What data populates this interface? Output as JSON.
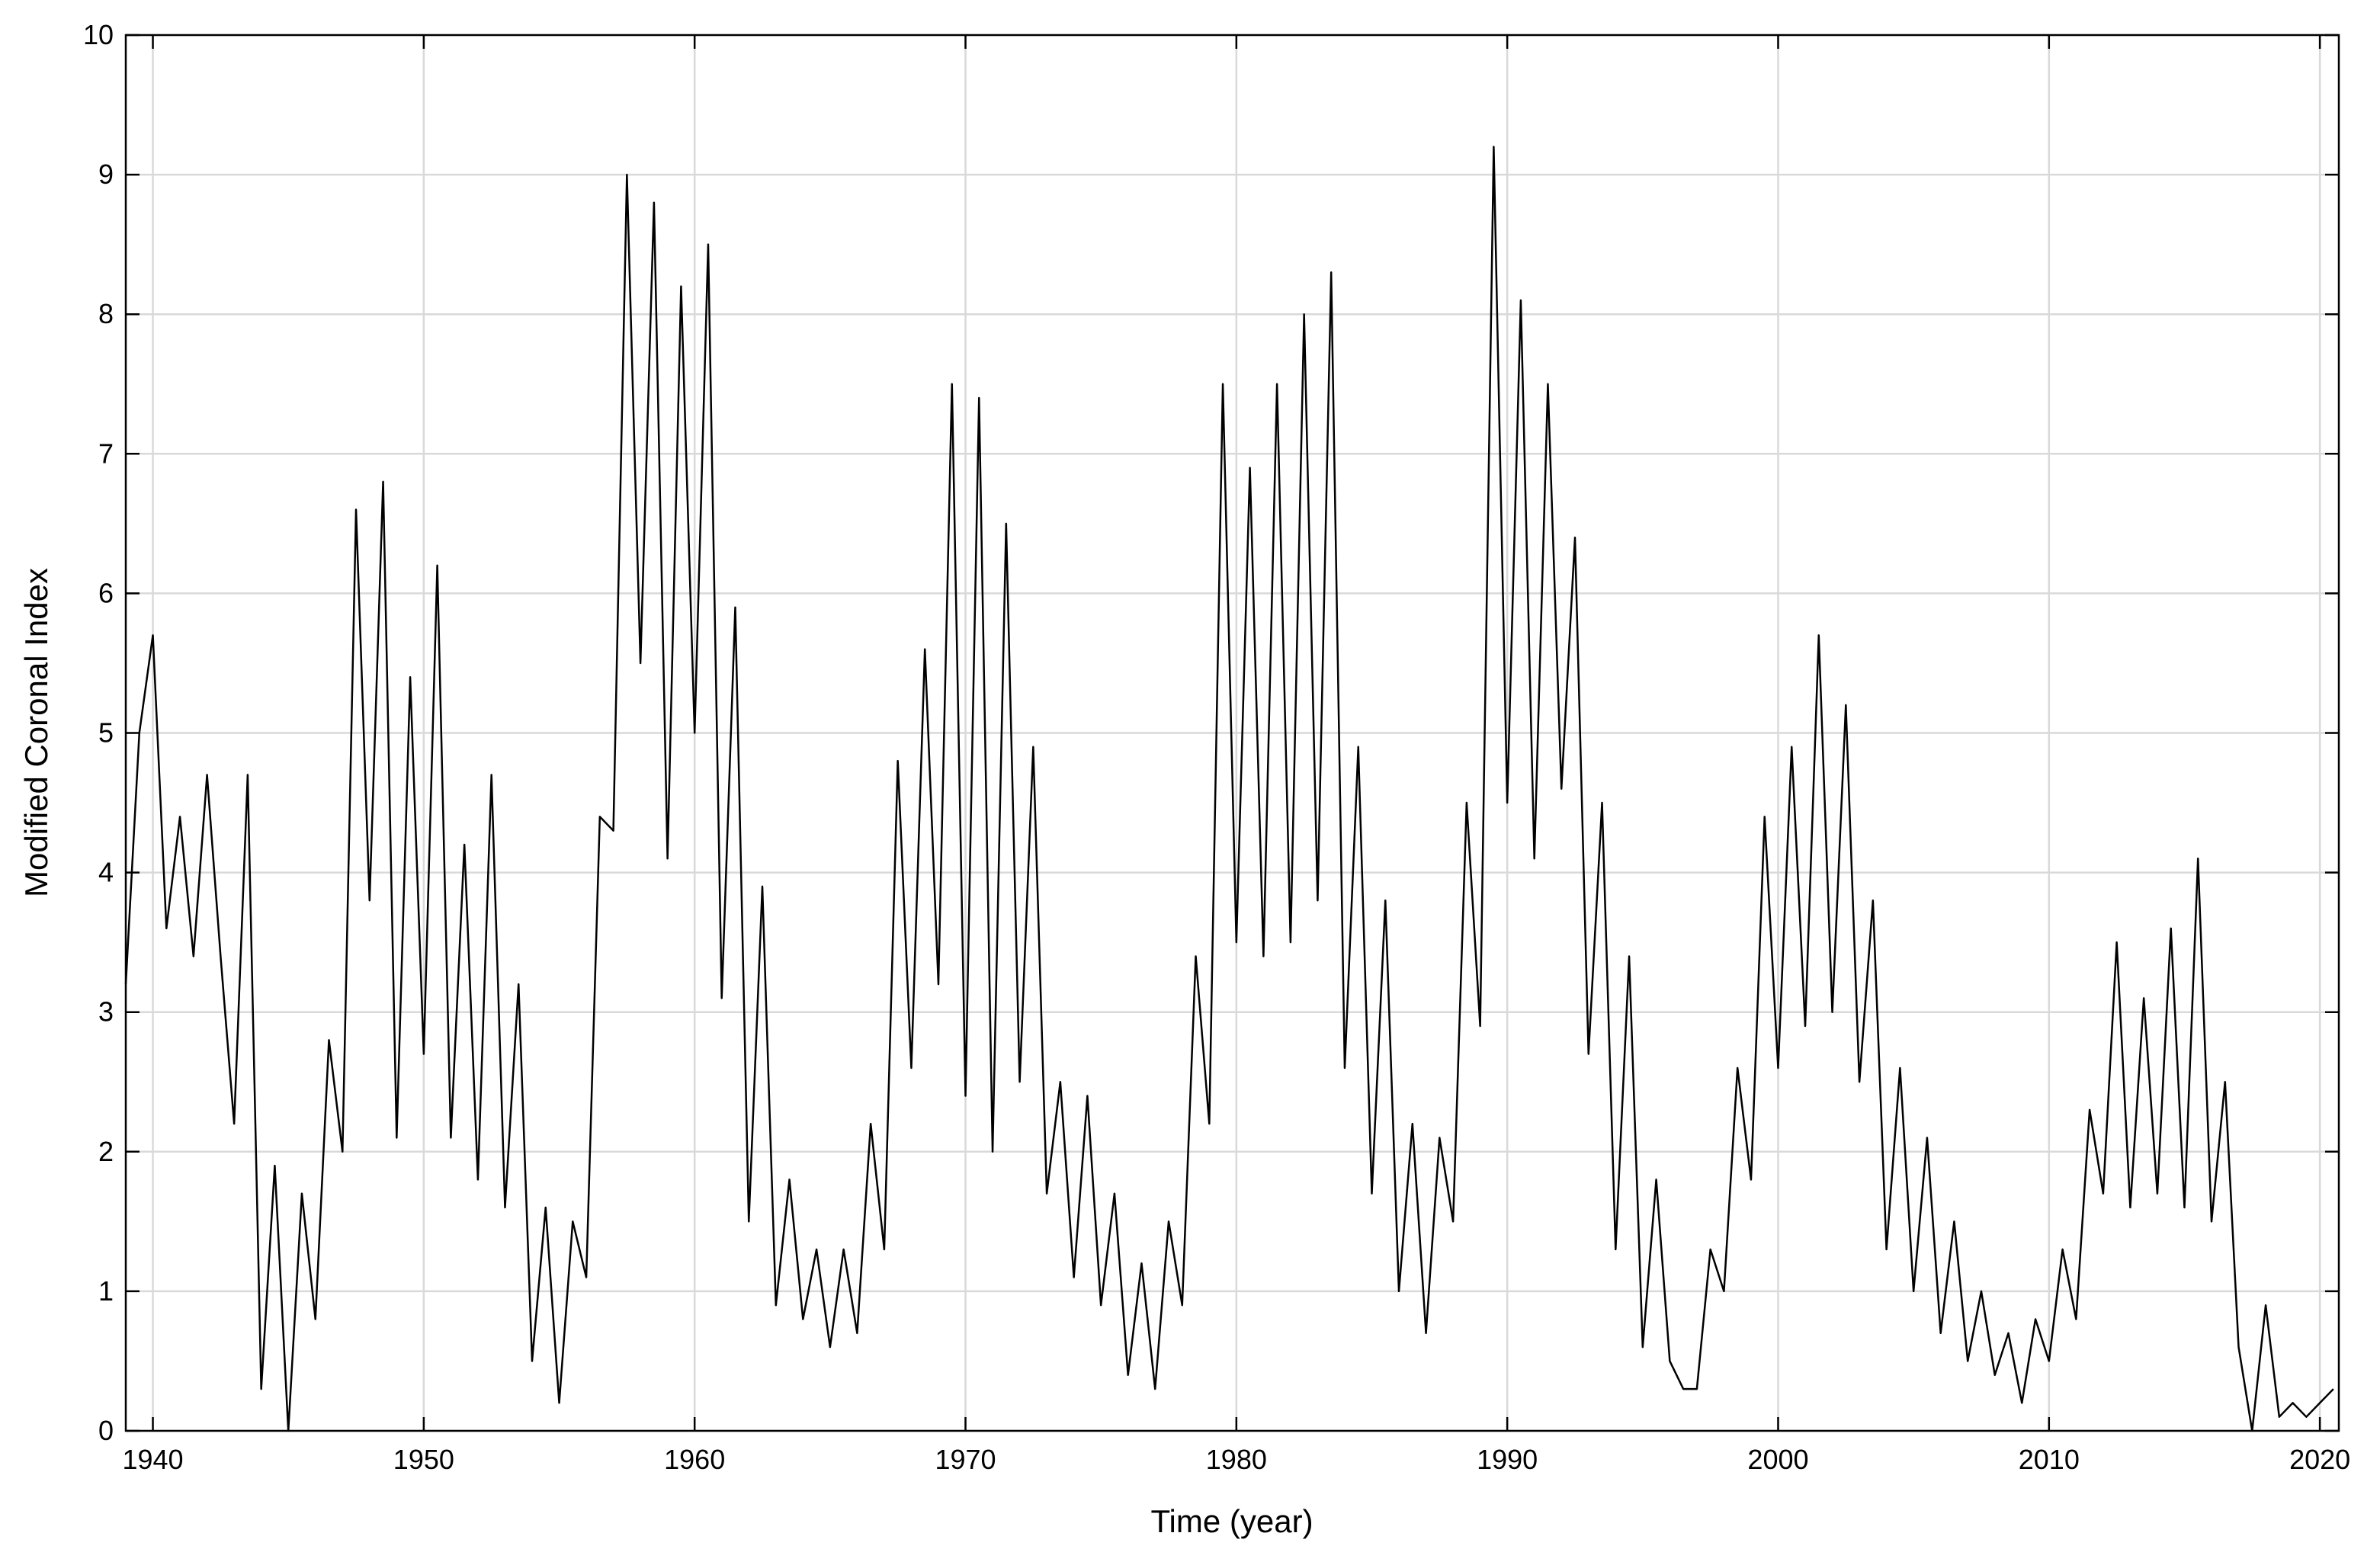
{
  "chart_data": {
    "type": "line",
    "xlabel": "Time (year)",
    "ylabel": "Modified Coronal Index",
    "xlim": [
      1939,
      2020.7
    ],
    "ylim": [
      0,
      10
    ],
    "xticks": [
      1940,
      1950,
      1960,
      1970,
      1980,
      1990,
      2000,
      2010,
      2020
    ],
    "yticks": [
      0,
      1,
      2,
      3,
      4,
      5,
      6,
      7,
      8,
      9,
      10
    ],
    "grid": true,
    "series": [
      {
        "color": "#000000",
        "x": [
          1939,
          1939.5,
          1940,
          1940.5,
          1941,
          1941.5,
          1942,
          1942.5,
          1943,
          1943.5,
          1944,
          1944.5,
          1945,
          1945.5,
          1946,
          1946.5,
          1947,
          1947.5,
          1948,
          1948.5,
          1949,
          1949.5,
          1950,
          1950.5,
          1951,
          1951.5,
          1952,
          1952.5,
          1953,
          1953.5,
          1954,
          1954.5,
          1955,
          1955.5,
          1956,
          1956.5,
          1957,
          1957.5,
          1958,
          1958.5,
          1959,
          1959.5,
          1960,
          1960.5,
          1961,
          1961.5,
          1962,
          1962.5,
          1963,
          1963.5,
          1964,
          1964.5,
          1965,
          1965.5,
          1966,
          1966.5,
          1967,
          1967.5,
          1968,
          1968.5,
          1969,
          1969.5,
          1970,
          1970.5,
          1971,
          1971.5,
          1972,
          1972.5,
          1973,
          1973.5,
          1974,
          1974.5,
          1975,
          1975.5,
          1976,
          1976.5,
          1977,
          1977.5,
          1978,
          1978.5,
          1979,
          1979.5,
          1980,
          1980.5,
          1981,
          1981.5,
          1982,
          1982.5,
          1983,
          1983.5,
          1984,
          1984.5,
          1985,
          1985.5,
          1986,
          1986.5,
          1987,
          1987.5,
          1988,
          1988.5,
          1989,
          1989.5,
          1990,
          1990.5,
          1991,
          1991.5,
          1992,
          1992.5,
          1993,
          1993.5,
          1994,
          1994.5,
          1995,
          1995.5,
          1996,
          1996.5,
          1997,
          1997.5,
          1998,
          1998.5,
          1999,
          1999.5,
          2000,
          2000.5,
          2001,
          2001.5,
          2002,
          2002.5,
          2003,
          2003.5,
          2004,
          2004.5,
          2005,
          2005.5,
          2006,
          2006.5,
          2007,
          2007.5,
          2008,
          2008.5,
          2009,
          2009.5,
          2010,
          2010.5,
          2011,
          2011.5,
          2012,
          2012.5,
          2013,
          2013.5,
          2014,
          2014.5,
          2015,
          2015.5,
          2016,
          2016.5,
          2017,
          2017.5,
          2018,
          2018.5,
          2019,
          2019.5,
          2020,
          2020.5
        ],
        "values": [
          3.2,
          5.0,
          5.7,
          3.6,
          4.4,
          3.4,
          4.7,
          3.4,
          2.2,
          4.7,
          0.3,
          1.9,
          0.0,
          1.7,
          0.8,
          2.8,
          2.0,
          6.6,
          3.8,
          6.8,
          2.1,
          5.4,
          2.7,
          6.2,
          2.1,
          4.2,
          1.8,
          4.7,
          1.6,
          3.2,
          0.5,
          1.6,
          0.2,
          1.5,
          1.1,
          4.4,
          4.3,
          9.0,
          5.5,
          8.8,
          4.1,
          8.2,
          5.0,
          8.5,
          3.1,
          5.9,
          1.5,
          3.9,
          0.9,
          1.8,
          0.8,
          1.3,
          0.6,
          1.3,
          0.7,
          2.2,
          1.3,
          4.8,
          2.6,
          5.6,
          3.2,
          7.5,
          2.4,
          7.4,
          2.0,
          6.5,
          2.5,
          4.9,
          1.7,
          2.5,
          1.1,
          2.4,
          0.9,
          1.7,
          0.4,
          1.2,
          0.3,
          1.5,
          0.9,
          3.4,
          2.2,
          7.5,
          3.5,
          6.9,
          3.4,
          7.5,
          3.5,
          8.0,
          3.8,
          8.3,
          2.6,
          4.9,
          1.7,
          3.8,
          1.0,
          2.2,
          0.7,
          2.1,
          1.5,
          4.5,
          2.9,
          9.2,
          4.5,
          8.1,
          4.1,
          7.5,
          4.6,
          6.4,
          2.7,
          4.5,
          1.3,
          3.4,
          0.6,
          1.8,
          0.5,
          0.3,
          0.3,
          1.3,
          1.0,
          2.6,
          1.8,
          4.4,
          2.6,
          4.9,
          2.9,
          5.7,
          3.0,
          5.2,
          2.5,
          3.8,
          1.3,
          2.6,
          1.0,
          2.1,
          0.7,
          1.5,
          0.5,
          1.0,
          0.4,
          0.7,
          0.2,
          0.8,
          0.5,
          1.3,
          0.8,
          2.3,
          1.7,
          3.5,
          1.6,
          3.1,
          1.7,
          3.6,
          1.6,
          4.1,
          1.5,
          2.5,
          0.6,
          0.0,
          0.9,
          0.1,
          0.2,
          0.1,
          0.2,
          0.3
        ]
      }
    ]
  }
}
